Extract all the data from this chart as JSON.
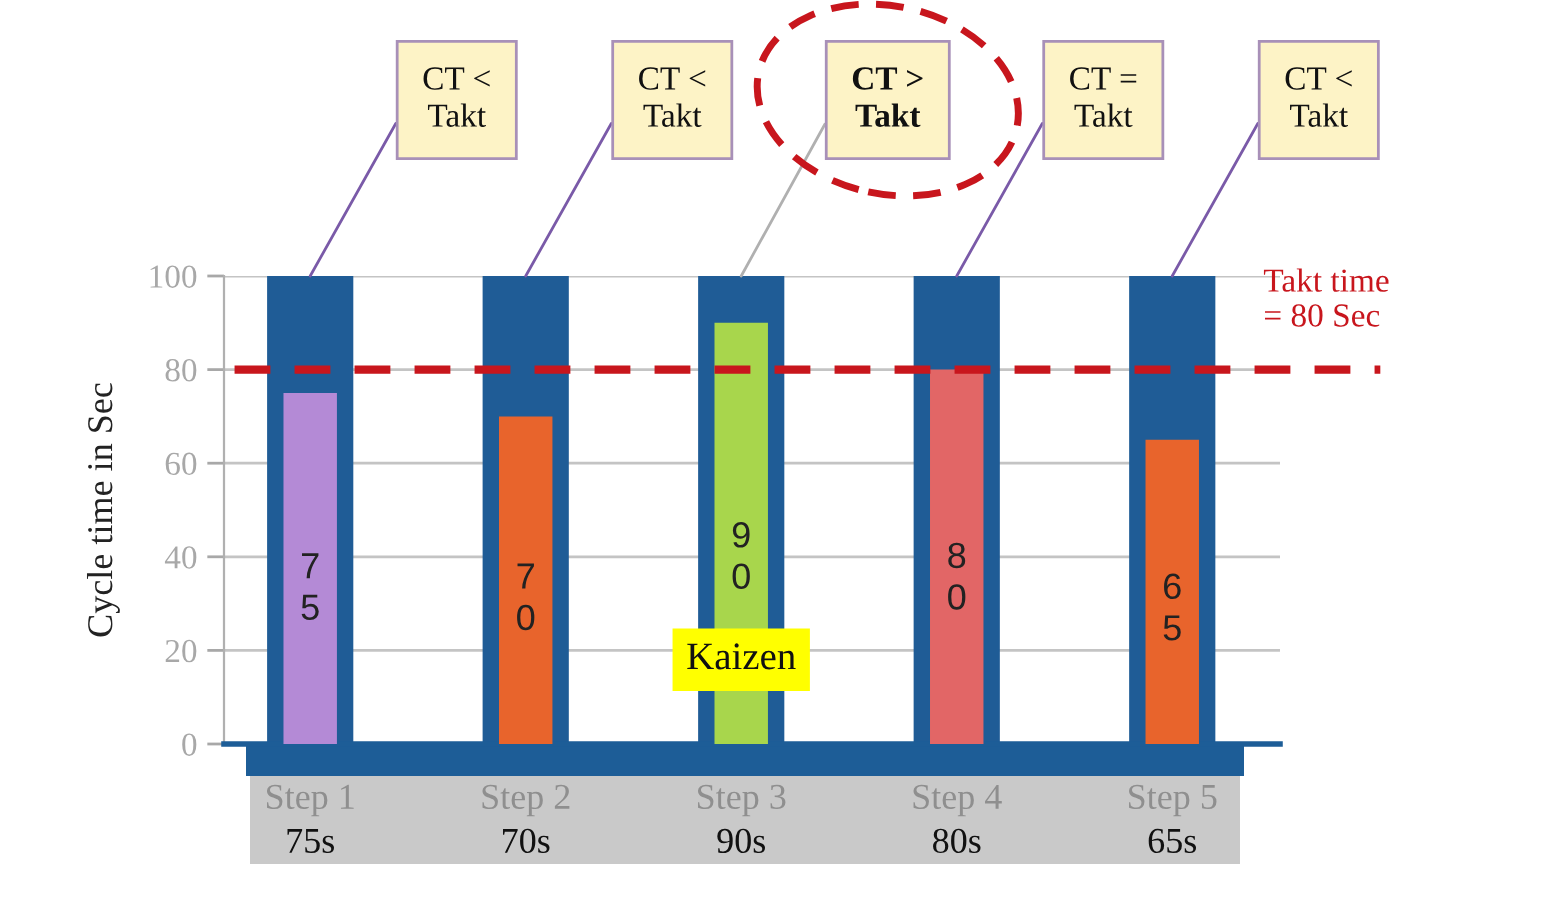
{
  "chart_data": {
    "type": "bar",
    "ylabel": "Cycle time in Sec",
    "categories": [
      "Step 1\n75s",
      "Step 2\n70s",
      "Step 3\n90s",
      "Step 4\n80s",
      "Step 5\n65s"
    ],
    "series": [
      {
        "color": "#1f5c96",
        "values": [
          100,
          100,
          100,
          100,
          100
        ]
      },
      {
        "colors": [
          "#b48ad6",
          "#e8642c",
          "#a8d64c",
          "#e26666",
          "#e8642c"
        ],
        "values": [
          75,
          70,
          90,
          80,
          65
        ],
        "data_labels": true
      }
    ],
    "ylim": [
      0,
      100
    ],
    "yticks": [
      0,
      20,
      40,
      60,
      80,
      100
    ],
    "grid": "y",
    "ref_lines": [
      {
        "axis": "y",
        "value": 80,
        "label": "Takt time\n= 80 Sec",
        "color": "#c8161d",
        "line_style": "dashed"
      }
    ],
    "annotations": [
      {
        "text": "CT <\nTakt",
        "x": "Step 1\n75s",
        "y": 100
      },
      {
        "text": "CT <\nTakt",
        "x": "Step 2\n70s",
        "y": 100
      },
      {
        "text": "CT >\nTakt",
        "x": "Step 3\n90s",
        "y": 100
      },
      {
        "text": "CT =\nTakt",
        "x": "Step 4\n80s",
        "y": 100
      },
      {
        "text": "CT <\nTakt",
        "x": "Step 5\n65s",
        "y": 100
      },
      "Kaizen"
    ]
  }
}
